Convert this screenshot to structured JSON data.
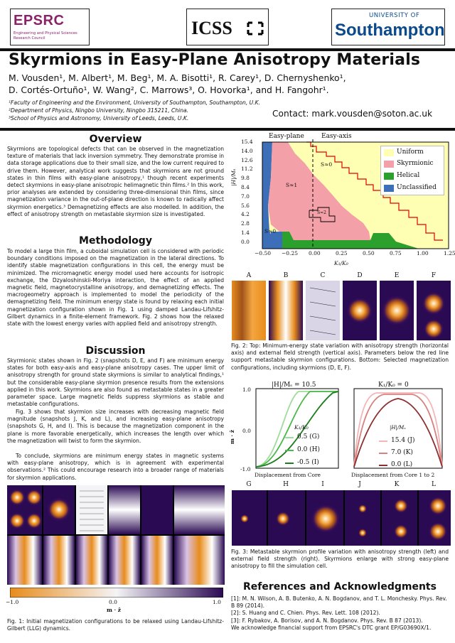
{
  "logos": {
    "epsrc": {
      "name": "EPSRC",
      "sub1": "Engineering and Physical Sciences",
      "sub2": "Research Council"
    },
    "icss": "ICSS",
    "southampton": {
      "top": "UNIVERSITY OF",
      "name": "Southampton"
    }
  },
  "title": "Skyrmions in Easy-Plane Anisotropy Materials",
  "authors_line1": "M. Vousden¹, M. Albert¹, M. Beg¹, M. A. Bisotti¹, R. Carey¹, D. Chernyshenko¹,",
  "authors_line2": "D. Cortés-Ortuño¹, W. Wang², C. Marrows³, O. Hovorka¹, and H. Fangohr¹.",
  "affiliations": [
    "¹Faculty of Engineering and the Environment, University of Southampton, Southampton, U.K.",
    "²Department of Physics, Ningbo University, Ningbo 315211, China.",
    "³School of Physics and Astronomy, University of Leeds, Leeds, U.K."
  ],
  "contact": "Contact: mark.vousden@soton.ac.uk",
  "overview": {
    "heading": "Overview",
    "text": "Skyrmions are topological defects that can be observed in the magnetization texture of materials that lack inversion symmetry. They demonstrate promise in data storage applications due to their small size, and the low current required to drive them. However, analytical work suggests that skyrmions are not ground states in thin films with easy-plane anisotropy,¹ though recent experiments detect skyrmions in easy-plane anisotropic helimagnetic thin films.² In this work, prior analyses are extended by considering three-dimensional thin films, since magnetization variance in the out-of-plane direction is known to radically affect skyrmion energetics.³ Demagnetizing effects are also modelled. In addition, the effect of anisotropy strength on metastable skyrmion size is investigated."
  },
  "methodology": {
    "heading": "Methodology",
    "text": "To model a large thin film, a cuboidal simulation cell is considered with periodic boundary conditions imposed on the magnetization in the lateral directions. To identify stable magnetization configurations in this cell, the energy must be minimized. The micromagnetic energy model used here accounts for isotropic exchange, the Dzyaloshinskii-Moriya interaction, the effect of an applied magnetic field, magnetocrystalline anisotropy, and demagnetizing effects. The macrogeometry approach is implemented to model the periodicity of the demagnetizing field. The minimum energy state is found by relaxing each initial magnetization configuration shown in Fig. 1 using damped Landau-Lifshitz-Gilbert dynamics in a finite-element framework. Fig. 2 shows how the relaxed state with the lowest energy varies with applied field and anisotropy strength."
  },
  "discussion": {
    "heading": "Discussion",
    "p1": "Skyrmionic states shown in Fig. 2 (snapshots D, E, and F) are minimum energy states for both easy-axis and easy-plane anisotropy cases. The upper limit of anisotropy strength for ground state skyrmions is similar to analytical findings,¹ but the considerable easy-plane skyrmion presence results from the extensions applied in this work. Skyrmions are also found as metastable states in a greater parameter space. Large magnetic fields suppress skyrmions as stable and metastable configurations.",
    "p2": "Fig. 3 shows that skyrmion size increases with decreasing magnetic field magnitude (snapshots J, K, and L), and increasing easy-plane anisotropy (snapshots G, H, and I). This is because the magnetization component in the plane is more favorable energetically, which increases the length over which the magnetization will twist to form the skyrmion.",
    "p3": "To conclude, skyrmions are minimum energy states in magnetic systems with easy-plane anisotropy, which is in agreement with experimental observations.² This could encourage research into a broader range of materials for skyrmion applications."
  },
  "fig1": {
    "colorbar_ticks": [
      "−1.0",
      "0.0",
      "1.0"
    ],
    "colorbar_label": "m · ẑ",
    "caption": "Fig. 1: Initial magnetization configurations to be relaxed using Landau-Lifshitz-Gilbert (LLG) dynamics."
  },
  "fig2": {
    "region_labels": [
      "Easy-plane",
      "Easy-axis"
    ],
    "legend": [
      "Uniform",
      "Skyrmionic",
      "Helical",
      "Unclassified"
    ],
    "ylabel": "|H|/Mₛ",
    "xlabel": "K₁/K₀",
    "yticks": [
      "15.4",
      "14.0",
      "12.6",
      "11.2",
      "9.8",
      "8.4",
      "7.0",
      "5.6",
      "4.2",
      "2.8",
      "1.4",
      "0.0"
    ],
    "xticks": [
      "−0.50",
      "−0.25",
      "0.00",
      "0.25",
      "0.50",
      "0.75",
      "1.00",
      "1.25"
    ],
    "annotations": {
      "s0_top": "S≈0",
      "s1": "S≈1",
      "s0_bottom": "S≈0",
      "s2": "S≈2"
    },
    "letters": [
      "A",
      "B",
      "C",
      "D",
      "E",
      "F"
    ],
    "caption": "Fig. 2: Top: Minimum-energy state variation with anisotropy strength (horizontal axis) and external field strength (vertical axis). Parameters below the red line support metastable skyrmion configurations. Bottom: Selected magnetization configurations, including skyrmions (D, E, F)."
  },
  "fig3": {
    "left_title": "|H|/Mₛ = 10.5",
    "left_legend_title": "K₁/K₀",
    "left_legend": [
      "0.5 (G)",
      "0.0 (H)",
      "-0.5 (I)"
    ],
    "left_xlabel": "Displacement from Core",
    "ylabel": "m · ẑ",
    "yticks": [
      "1.0",
      "0.0",
      "-1.0"
    ],
    "right_title": "K₁/K₀ = 0",
    "right_legend_title": "|H|/Mₛ",
    "right_legend": [
      "15.4 (J)",
      "7.0 (K)",
      "0.0 (L)"
    ],
    "right_xlabel": "Displacement from Core 1 to 2",
    "letters": [
      "G",
      "H",
      "I",
      "J",
      "K",
      "L"
    ],
    "caption": "Fig. 3: Metastable skyrmion profile variation with anisotropy strength (left) and external field strength (right). Skyrmions enlarge with strong easy-plane anisotropy to fill the simulation cell."
  },
  "references": {
    "heading": "References and Acknowledgments",
    "items": [
      "[1]: M. N. Wilson, A. B. Butenko, A. N. Bogdanov, and T. L. Monchesky. Phys. Rev. B 89 (2014).",
      "[2]: S. Huang and C. Chien. Phys. Rev. Lett. 108 (2012).",
      "[3]: F. Rybakov, A. Borisov, and A. N. Bogdanov. Phys. Rev. B 87 (2013).",
      "We acknowledge financial support from EPSRC's DTC grant EP/G03690X/1."
    ]
  },
  "colors": {
    "uniform": "#ffffb3",
    "skyrmionic": "#f4a0a8",
    "helical": "#2ca02c",
    "unclassified": "#3c6fb8",
    "purple": "#2a0a52",
    "orange": "#e88c1c"
  }
}
